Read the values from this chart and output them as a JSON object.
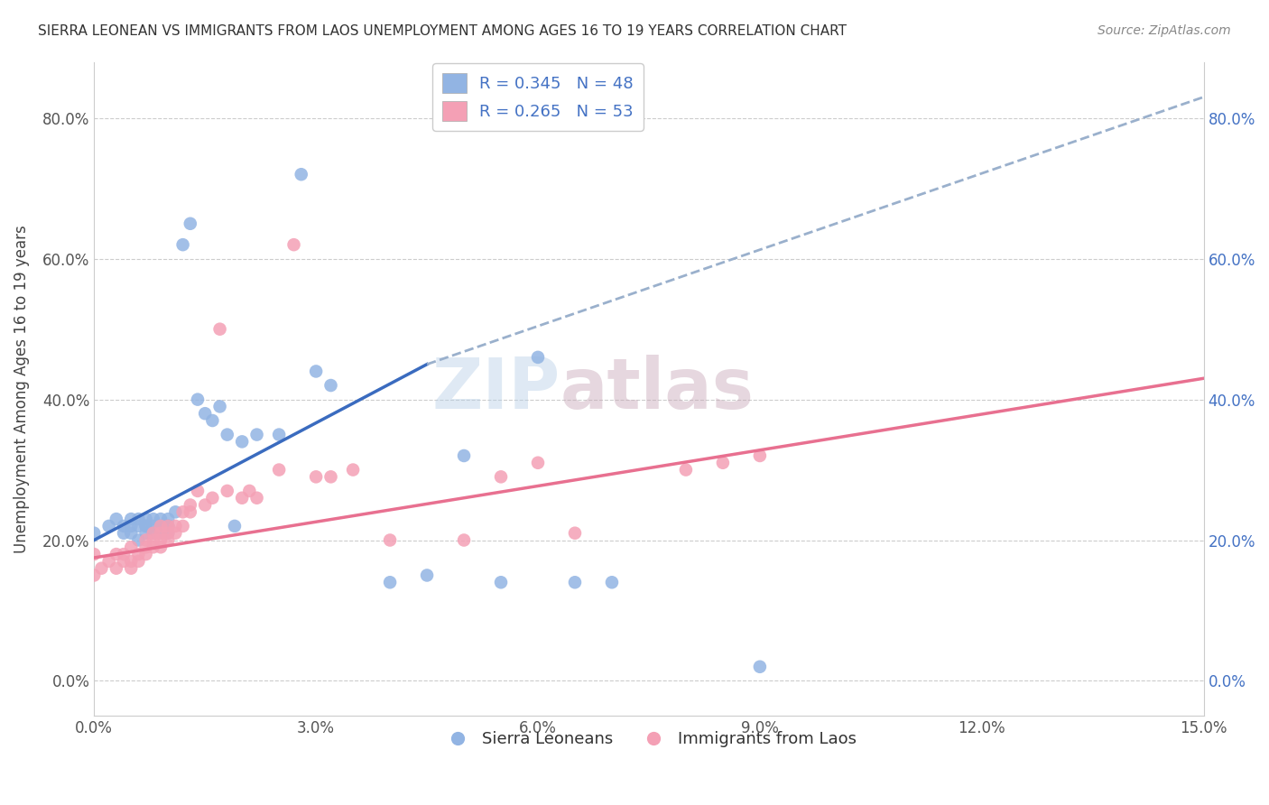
{
  "title": "SIERRA LEONEAN VS IMMIGRANTS FROM LAOS UNEMPLOYMENT AMONG AGES 16 TO 19 YEARS CORRELATION CHART",
  "source": "Source: ZipAtlas.com",
  "ylabel": "Unemployment Among Ages 16 to 19 years",
  "xlim": [
    0.0,
    0.15
  ],
  "ylim": [
    -0.05,
    0.88
  ],
  "xticks": [
    0.0,
    0.03,
    0.06,
    0.09,
    0.12,
    0.15
  ],
  "xtick_labels": [
    "0.0%",
    "3.0%",
    "6.0%",
    "9.0%",
    "12.0%",
    "15.0%"
  ],
  "yticks": [
    0.0,
    0.2,
    0.4,
    0.6,
    0.8
  ],
  "ytick_labels": [
    "0.0%",
    "20.0%",
    "40.0%",
    "60.0%",
    "80.0%"
  ],
  "legend1_label": "R = 0.345   N = 48",
  "legend2_label": "R = 0.265   N = 53",
  "legend_bottom_label1": "Sierra Leoneans",
  "legend_bottom_label2": "Immigrants from Laos",
  "blue_color": "#92b4e3",
  "pink_color": "#f4a0b5",
  "blue_line_color": "#3a6bbf",
  "pink_line_color": "#e87090",
  "dash_line_color": "#9ab0cc",
  "blue_scatter_x": [
    0.0,
    0.002,
    0.003,
    0.004,
    0.004,
    0.005,
    0.005,
    0.005,
    0.006,
    0.006,
    0.006,
    0.007,
    0.007,
    0.007,
    0.007,
    0.008,
    0.008,
    0.008,
    0.009,
    0.009,
    0.009,
    0.01,
    0.01,
    0.01,
    0.01,
    0.011,
    0.012,
    0.013,
    0.014,
    0.015,
    0.016,
    0.017,
    0.018,
    0.019,
    0.02,
    0.022,
    0.025,
    0.028,
    0.03,
    0.032,
    0.04,
    0.045,
    0.05,
    0.055,
    0.06,
    0.065,
    0.07,
    0.09
  ],
  "blue_scatter_y": [
    0.21,
    0.22,
    0.23,
    0.22,
    0.21,
    0.23,
    0.22,
    0.21,
    0.23,
    0.22,
    0.2,
    0.22,
    0.23,
    0.22,
    0.21,
    0.22,
    0.23,
    0.21,
    0.22,
    0.23,
    0.21,
    0.22,
    0.23,
    0.22,
    0.21,
    0.24,
    0.62,
    0.65,
    0.4,
    0.38,
    0.37,
    0.39,
    0.35,
    0.22,
    0.34,
    0.35,
    0.35,
    0.72,
    0.44,
    0.42,
    0.14,
    0.15,
    0.32,
    0.14,
    0.46,
    0.14,
    0.14,
    0.02
  ],
  "pink_scatter_x": [
    0.0,
    0.0,
    0.001,
    0.002,
    0.003,
    0.003,
    0.004,
    0.004,
    0.005,
    0.005,
    0.005,
    0.006,
    0.006,
    0.007,
    0.007,
    0.007,
    0.008,
    0.008,
    0.008,
    0.009,
    0.009,
    0.009,
    0.009,
    0.01,
    0.01,
    0.01,
    0.011,
    0.011,
    0.012,
    0.012,
    0.013,
    0.013,
    0.014,
    0.015,
    0.016,
    0.017,
    0.018,
    0.02,
    0.021,
    0.022,
    0.025,
    0.027,
    0.03,
    0.032,
    0.035,
    0.04,
    0.05,
    0.055,
    0.06,
    0.065,
    0.08,
    0.085,
    0.09
  ],
  "pink_scatter_y": [
    0.15,
    0.18,
    0.16,
    0.17,
    0.18,
    0.16,
    0.17,
    0.18,
    0.19,
    0.17,
    0.16,
    0.18,
    0.17,
    0.18,
    0.2,
    0.19,
    0.19,
    0.2,
    0.21,
    0.2,
    0.21,
    0.22,
    0.19,
    0.22,
    0.21,
    0.2,
    0.22,
    0.21,
    0.22,
    0.24,
    0.25,
    0.24,
    0.27,
    0.25,
    0.26,
    0.5,
    0.27,
    0.26,
    0.27,
    0.26,
    0.3,
    0.62,
    0.29,
    0.29,
    0.3,
    0.2,
    0.2,
    0.29,
    0.31,
    0.21,
    0.3,
    0.31,
    0.32
  ],
  "blue_line_x0": 0.0,
  "blue_line_y0": 0.2,
  "blue_line_x1": 0.045,
  "blue_line_y1": 0.45,
  "dash_line_x0": 0.045,
  "dash_line_y0": 0.45,
  "dash_line_x1": 0.15,
  "dash_line_y1": 0.83,
  "pink_line_x0": 0.0,
  "pink_line_y0": 0.175,
  "pink_line_x1": 0.15,
  "pink_line_y1": 0.43
}
